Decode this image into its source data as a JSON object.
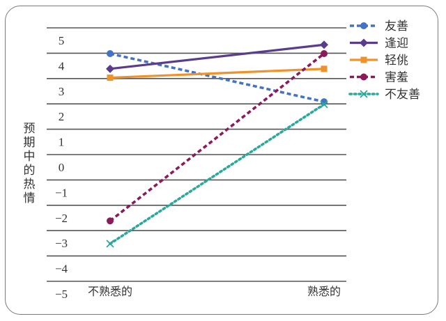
{
  "chart_data": {
    "type": "line",
    "title": "",
    "xlabel": "",
    "ylabel": "预期中的热情",
    "categories": [
      "不熟悉的",
      "熟悉的"
    ],
    "yticks": [
      5,
      4,
      3,
      2,
      1,
      0,
      -1,
      -2,
      -3,
      -4,
      -5
    ],
    "ytick_labels": [
      "5",
      "4",
      "3",
      "2",
      "1",
      "0",
      "−1",
      "−2",
      "−3",
      "−4",
      "−5"
    ],
    "ylim": [
      -5,
      5
    ],
    "grid": true,
    "legend_position": "right",
    "series": [
      {
        "name": "友善",
        "values": [
          4.0,
          2.1
        ],
        "color": "#4472c4",
        "style": "dashed",
        "marker": "circle"
      },
      {
        "name": "逢迎",
        "values": [
          3.4,
          4.35
        ],
        "color": "#5b3c8c",
        "style": "solid",
        "marker": "diamond"
      },
      {
        "name": "轻佻",
        "values": [
          3.05,
          3.4
        ],
        "color": "#f0922b",
        "style": "solid",
        "marker": "square"
      },
      {
        "name": "害羞",
        "values": [
          -2.6,
          4.0
        ],
        "color": "#8b1a5a",
        "style": "dashed",
        "marker": "circle"
      },
      {
        "name": "不友善",
        "values": [
          -3.5,
          2.0
        ],
        "color": "#2aa89a",
        "style": "dotted",
        "marker": "x"
      }
    ]
  }
}
